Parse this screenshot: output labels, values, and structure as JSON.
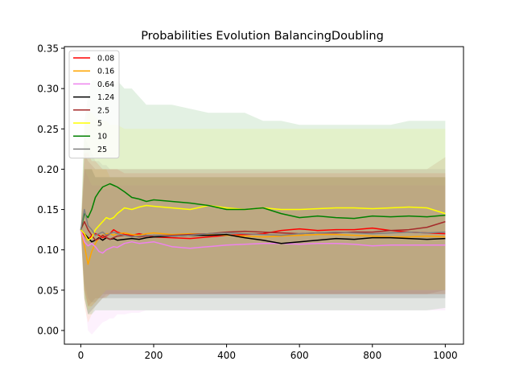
{
  "chart_data": {
    "type": "line",
    "title": "Probabilities Evolution BalancingDoubling",
    "xlabel": "",
    "ylabel": "",
    "xlim": [
      -45,
      1050
    ],
    "ylim": [
      -0.017,
      0.352
    ],
    "xticks": [
      0,
      200,
      400,
      600,
      800,
      1000
    ],
    "yticks": [
      0.0,
      0.05,
      0.1,
      0.15,
      0.2,
      0.25,
      0.3,
      0.35
    ],
    "grid": false,
    "legend": "top-left",
    "x": [
      0,
      10,
      20,
      30,
      40,
      50,
      60,
      70,
      80,
      90,
      100,
      120,
      140,
      160,
      180,
      200,
      250,
      300,
      350,
      400,
      450,
      500,
      550,
      600,
      650,
      700,
      750,
      800,
      850,
      900,
      950,
      1000
    ],
    "series": [
      {
        "name": "0.08",
        "color": "#ff0000",
        "values": [
          0.125,
          0.118,
          0.112,
          0.118,
          0.12,
          0.118,
          0.115,
          0.117,
          0.12,
          0.125,
          0.122,
          0.119,
          0.118,
          0.12,
          0.118,
          0.116,
          0.115,
          0.114,
          0.116,
          0.118,
          0.119,
          0.12,
          0.124,
          0.126,
          0.124,
          0.125,
          0.125,
          0.127,
          0.124,
          0.122,
          0.121,
          0.12
        ],
        "band_low": [
          0.125,
          0.05,
          0.03,
          0.03,
          0.035,
          0.04,
          0.04,
          0.042,
          0.045,
          0.045,
          0.045,
          0.045,
          0.045,
          0.045,
          0.045,
          0.045,
          0.045,
          0.045,
          0.045,
          0.045,
          0.045,
          0.045,
          0.045,
          0.045,
          0.045,
          0.045,
          0.045,
          0.045,
          0.045,
          0.045,
          0.045,
          0.045
        ],
        "band_high": [
          0.125,
          0.22,
          0.22,
          0.21,
          0.21,
          0.205,
          0.2,
          0.2,
          0.2,
          0.2,
          0.2,
          0.195,
          0.195,
          0.195,
          0.195,
          0.195,
          0.195,
          0.195,
          0.195,
          0.195,
          0.195,
          0.195,
          0.195,
          0.195,
          0.195,
          0.195,
          0.195,
          0.195,
          0.195,
          0.195,
          0.195,
          0.195
        ]
      },
      {
        "name": "0.16",
        "color": "#ffa500",
        "values": [
          0.125,
          0.105,
          0.082,
          0.098,
          0.108,
          0.115,
          0.118,
          0.12,
          0.12,
          0.118,
          0.12,
          0.121,
          0.119,
          0.118,
          0.12,
          0.121,
          0.119,
          0.12,
          0.119,
          0.118,
          0.117,
          0.116,
          0.117,
          0.118,
          0.119,
          0.119,
          0.118,
          0.117,
          0.116,
          0.116,
          0.117,
          0.116
        ],
        "band_low": [
          0.125,
          0.03,
          0.01,
          0.02,
          0.03,
          0.035,
          0.04,
          0.04,
          0.045,
          0.045,
          0.045,
          0.045,
          0.045,
          0.045,
          0.045,
          0.045,
          0.045,
          0.045,
          0.045,
          0.045,
          0.045,
          0.045,
          0.045,
          0.045,
          0.045,
          0.045,
          0.045,
          0.045,
          0.045,
          0.045,
          0.045,
          0.045
        ],
        "band_high": [
          0.125,
          0.2,
          0.2,
          0.2,
          0.2,
          0.2,
          0.2,
          0.2,
          0.19,
          0.19,
          0.19,
          0.19,
          0.19,
          0.19,
          0.19,
          0.19,
          0.19,
          0.19,
          0.19,
          0.19,
          0.19,
          0.19,
          0.19,
          0.19,
          0.19,
          0.19,
          0.19,
          0.19,
          0.19,
          0.19,
          0.19,
          0.19
        ]
      },
      {
        "name": "0.64",
        "color": "#ee82ee",
        "values": [
          0.125,
          0.11,
          0.105,
          0.108,
          0.104,
          0.098,
          0.096,
          0.1,
          0.102,
          0.104,
          0.103,
          0.108,
          0.11,
          0.108,
          0.109,
          0.11,
          0.104,
          0.102,
          0.104,
          0.106,
          0.107,
          0.108,
          0.108,
          0.107,
          0.108,
          0.108,
          0.107,
          0.105,
          0.106,
          0.106,
          0.106,
          0.106
        ],
        "band_low": [
          0.125,
          0.04,
          0.0,
          -0.005,
          0.0,
          0.005,
          0.01,
          0.012,
          0.015,
          0.015,
          0.02,
          0.02,
          0.022,
          0.022,
          0.025,
          0.025,
          0.025,
          0.025,
          0.025,
          0.025,
          0.025,
          0.025,
          0.025,
          0.025,
          0.025,
          0.025,
          0.025,
          0.025,
          0.025,
          0.025,
          0.025,
          0.025
        ],
        "band_high": [
          0.125,
          0.2,
          0.19,
          0.18,
          0.18,
          0.18,
          0.175,
          0.175,
          0.175,
          0.18,
          0.18,
          0.18,
          0.18,
          0.18,
          0.18,
          0.18,
          0.18,
          0.18,
          0.18,
          0.18,
          0.18,
          0.18,
          0.18,
          0.18,
          0.18,
          0.18,
          0.18,
          0.18,
          0.18,
          0.18,
          0.18,
          0.18
        ]
      },
      {
        "name": "1.24",
        "color": "#000000",
        "values": [
          0.125,
          0.12,
          0.115,
          0.11,
          0.112,
          0.115,
          0.112,
          0.115,
          0.113,
          0.114,
          0.112,
          0.113,
          0.114,
          0.113,
          0.115,
          0.116,
          0.117,
          0.118,
          0.118,
          0.119,
          0.115,
          0.112,
          0.108,
          0.11,
          0.112,
          0.114,
          0.113,
          0.115,
          0.115,
          0.114,
          0.113,
          0.114
        ],
        "band_low": [
          0.125,
          0.04,
          0.02,
          0.025,
          0.03,
          0.035,
          0.04,
          0.04,
          0.04,
          0.04,
          0.04,
          0.04,
          0.04,
          0.04,
          0.04,
          0.04,
          0.04,
          0.04,
          0.04,
          0.04,
          0.04,
          0.04,
          0.04,
          0.04,
          0.04,
          0.04,
          0.04,
          0.04,
          0.04,
          0.04,
          0.04,
          0.04
        ],
        "band_high": [
          0.125,
          0.2,
          0.2,
          0.2,
          0.19,
          0.19,
          0.19,
          0.19,
          0.19,
          0.19,
          0.19,
          0.19,
          0.19,
          0.19,
          0.19,
          0.19,
          0.19,
          0.19,
          0.19,
          0.19,
          0.19,
          0.19,
          0.19,
          0.19,
          0.19,
          0.19,
          0.19,
          0.19,
          0.19,
          0.19,
          0.19,
          0.19
        ]
      },
      {
        "name": "2.5",
        "color": "#a52a2a",
        "values": [
          0.125,
          0.135,
          0.125,
          0.118,
          0.112,
          0.114,
          0.118,
          0.115,
          0.113,
          0.115,
          0.117,
          0.118,
          0.117,
          0.116,
          0.117,
          0.118,
          0.118,
          0.119,
          0.12,
          0.122,
          0.123,
          0.122,
          0.121,
          0.12,
          0.121,
          0.121,
          0.122,
          0.122,
          0.124,
          0.125,
          0.128,
          0.135
        ],
        "band_low": [
          0.125,
          0.05,
          0.03,
          0.035,
          0.04,
          0.04,
          0.045,
          0.045,
          0.045,
          0.045,
          0.045,
          0.045,
          0.045,
          0.045,
          0.045,
          0.045,
          0.045,
          0.045,
          0.045,
          0.045,
          0.045,
          0.045,
          0.045,
          0.045,
          0.045,
          0.045,
          0.045,
          0.045,
          0.045,
          0.045,
          0.045,
          0.05
        ],
        "band_high": [
          0.125,
          0.22,
          0.21,
          0.205,
          0.2,
          0.2,
          0.2,
          0.2,
          0.2,
          0.2,
          0.2,
          0.2,
          0.2,
          0.2,
          0.2,
          0.2,
          0.2,
          0.2,
          0.2,
          0.2,
          0.2,
          0.2,
          0.2,
          0.2,
          0.2,
          0.2,
          0.2,
          0.2,
          0.2,
          0.2,
          0.2,
          0.215
        ]
      },
      {
        "name": "5",
        "color": "#ffff00",
        "values": [
          0.125,
          0.12,
          0.112,
          0.115,
          0.125,
          0.13,
          0.135,
          0.14,
          0.138,
          0.14,
          0.145,
          0.152,
          0.15,
          0.153,
          0.155,
          0.154,
          0.152,
          0.15,
          0.155,
          0.152,
          0.15,
          0.152,
          0.15,
          0.15,
          0.151,
          0.152,
          0.152,
          0.151,
          0.152,
          0.153,
          0.152,
          0.145
        ],
        "band_low": [
          0.125,
          0.04,
          0.025,
          0.03,
          0.035,
          0.04,
          0.045,
          0.05,
          0.05,
          0.05,
          0.05,
          0.05,
          0.05,
          0.05,
          0.05,
          0.05,
          0.05,
          0.05,
          0.05,
          0.05,
          0.05,
          0.05,
          0.05,
          0.05,
          0.05,
          0.05,
          0.05,
          0.05,
          0.05,
          0.05,
          0.05,
          0.05
        ],
        "band_high": [
          0.125,
          0.25,
          0.27,
          0.27,
          0.265,
          0.26,
          0.26,
          0.26,
          0.255,
          0.255,
          0.255,
          0.25,
          0.25,
          0.25,
          0.25,
          0.25,
          0.25,
          0.25,
          0.25,
          0.25,
          0.25,
          0.25,
          0.25,
          0.25,
          0.25,
          0.25,
          0.25,
          0.25,
          0.25,
          0.25,
          0.25,
          0.25
        ]
      },
      {
        "name": "10",
        "color": "#008000",
        "values": [
          0.125,
          0.145,
          0.14,
          0.15,
          0.165,
          0.172,
          0.178,
          0.18,
          0.182,
          0.18,
          0.178,
          0.172,
          0.165,
          0.163,
          0.16,
          0.162,
          0.16,
          0.158,
          0.155,
          0.15,
          0.15,
          0.152,
          0.145,
          0.14,
          0.142,
          0.14,
          0.139,
          0.142,
          0.141,
          0.142,
          0.141,
          0.143
        ],
        "band_low": [
          0.125,
          0.04,
          0.02,
          0.02,
          0.025,
          0.025,
          0.025,
          0.025,
          0.025,
          0.025,
          0.025,
          0.025,
          0.025,
          0.025,
          0.025,
          0.025,
          0.025,
          0.025,
          0.025,
          0.025,
          0.025,
          0.025,
          0.025,
          0.025,
          0.025,
          0.025,
          0.025,
          0.025,
          0.025,
          0.025,
          0.025,
          0.028
        ],
        "band_high": [
          0.125,
          0.26,
          0.29,
          0.31,
          0.31,
          0.31,
          0.31,
          0.31,
          0.31,
          0.3,
          0.31,
          0.3,
          0.3,
          0.29,
          0.28,
          0.28,
          0.28,
          0.275,
          0.27,
          0.27,
          0.27,
          0.26,
          0.26,
          0.255,
          0.255,
          0.255,
          0.255,
          0.255,
          0.255,
          0.26,
          0.26,
          0.26
        ]
      },
      {
        "name": "25",
        "color": "#808080",
        "values": [
          0.125,
          0.15,
          0.13,
          0.125,
          0.118,
          0.12,
          0.122,
          0.118,
          0.12,
          0.122,
          0.12,
          0.118,
          0.116,
          0.117,
          0.118,
          0.118,
          0.117,
          0.118,
          0.12,
          0.121,
          0.12,
          0.119,
          0.118,
          0.12,
          0.121,
          0.122,
          0.121,
          0.12,
          0.121,
          0.122,
          0.121,
          0.122
        ],
        "band_low": [
          0.125,
          0.06,
          0.04,
          0.035,
          0.035,
          0.04,
          0.04,
          0.045,
          0.045,
          0.045,
          0.045,
          0.045,
          0.045,
          0.045,
          0.045,
          0.045,
          0.045,
          0.045,
          0.045,
          0.045,
          0.045,
          0.045,
          0.045,
          0.045,
          0.045,
          0.045,
          0.045,
          0.045,
          0.045,
          0.045,
          0.045,
          0.045
        ],
        "band_high": [
          0.125,
          0.24,
          0.23,
          0.22,
          0.21,
          0.21,
          0.205,
          0.205,
          0.2,
          0.2,
          0.2,
          0.2,
          0.2,
          0.2,
          0.2,
          0.2,
          0.2,
          0.2,
          0.2,
          0.2,
          0.2,
          0.2,
          0.2,
          0.2,
          0.2,
          0.2,
          0.2,
          0.2,
          0.2,
          0.2,
          0.2,
          0.2
        ]
      }
    ]
  }
}
